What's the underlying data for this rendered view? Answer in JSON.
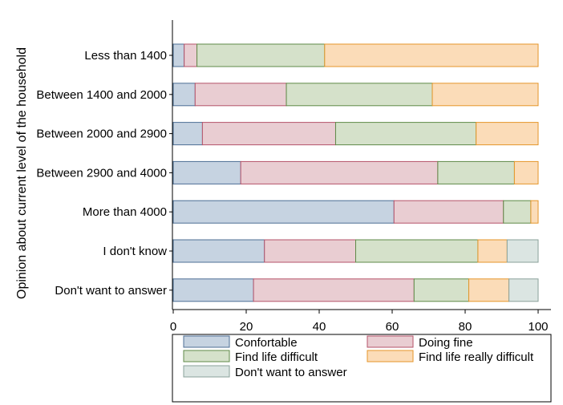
{
  "chart_data": {
    "type": "bar",
    "orientation": "horizontal",
    "stacked": true,
    "title": "",
    "xlabel": "",
    "ylabel": "Opinion about current level of the household",
    "xlim": [
      0,
      100
    ],
    "xticks": [
      "0",
      "20",
      "40",
      "60",
      "80",
      "100"
    ],
    "grid": false,
    "legend_position": "bottom",
    "categories": [
      "Less than 1400",
      "Between 1400 and 2000",
      "Between 2000 and 2900",
      "Between 2900 and 4000",
      "More than 4000",
      "I don't know",
      "Don't want to answer"
    ],
    "series": [
      {
        "name": "Confortable",
        "color": "#c6d3e1",
        "stroke": "#4d6f95",
        "values": [
          3,
          6,
          8,
          18.5,
          60.5,
          25,
          22
        ]
      },
      {
        "name": "Doing fine",
        "color": "#e9cdd2",
        "stroke": "#b5536a",
        "values": [
          3.5,
          25,
          36.5,
          54,
          30,
          25,
          44
        ]
      },
      {
        "name": "Find life difficult",
        "color": "#d5e1ca",
        "stroke": "#5f8a48",
        "values": [
          35,
          40,
          38.5,
          21,
          7.5,
          33.5,
          15
        ]
      },
      {
        "name": "Find life really difficult",
        "color": "#fbdcb8",
        "stroke": "#e5962a",
        "values": [
          58.5,
          29,
          17,
          6.5,
          2,
          8,
          11
        ]
      },
      {
        "name": "Don't want to answer",
        "color": "#dbe5e2",
        "stroke": "#8aa19a",
        "values": [
          0,
          0,
          0,
          0,
          0,
          8.5,
          8
        ]
      }
    ]
  }
}
